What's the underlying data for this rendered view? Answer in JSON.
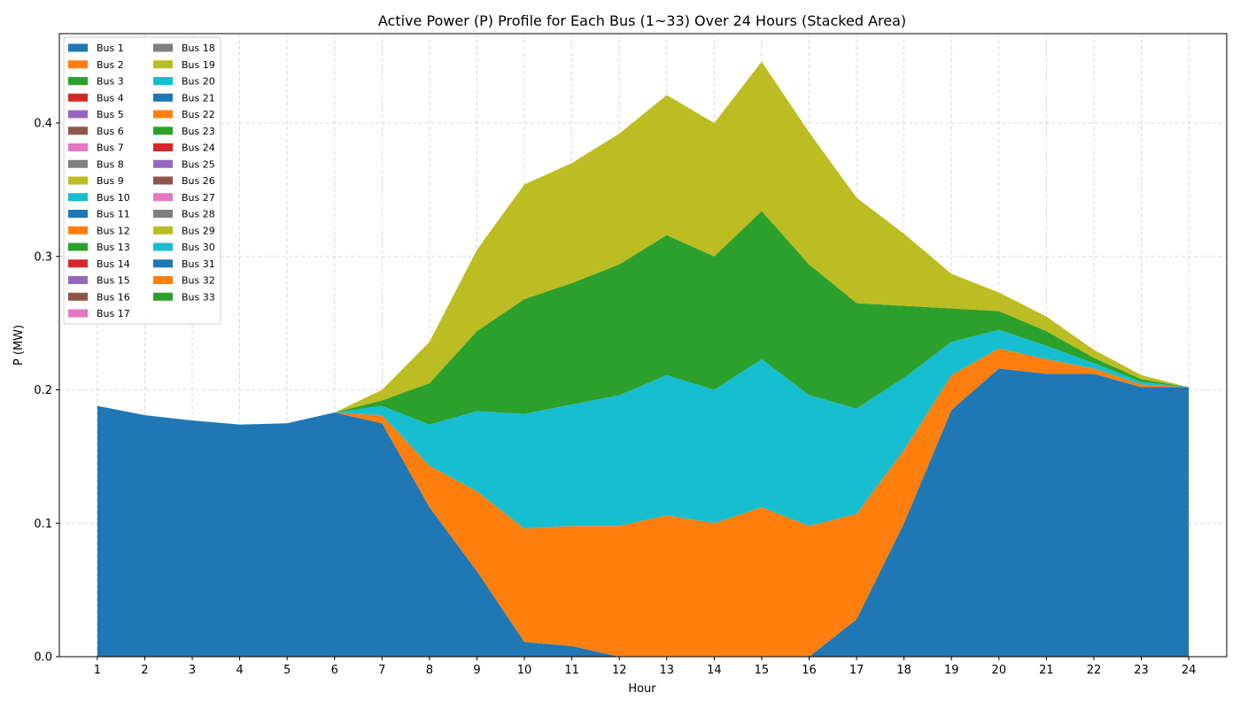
{
  "chart_data": {
    "type": "area",
    "stacked": true,
    "title": "Active Power (P) Profile for Each Bus (1~33) Over 24 Hours (Stacked Area)",
    "xlabel": "Hour",
    "ylabel": "P (MW)",
    "x": [
      1,
      2,
      3,
      4,
      5,
      6,
      7,
      8,
      9,
      10,
      11,
      12,
      13,
      14,
      15,
      16,
      17,
      18,
      19,
      20,
      21,
      22,
      23,
      24
    ],
    "xlim": [
      0.2,
      24.8
    ],
    "ylim": [
      0.0,
      0.467
    ],
    "yticks": [
      0.0,
      0.1,
      0.2,
      0.3,
      0.4
    ],
    "ytick_labels": [
      "0.0",
      "0.1",
      "0.2",
      "0.3",
      "0.4"
    ],
    "grid": true,
    "legend_position": "upper-left",
    "legend_columns": 2,
    "series": [
      {
        "name": "Bus 1",
        "color": "#1f77b4",
        "values": [
          0.188,
          0.181,
          0.177,
          0.174,
          0.175,
          0.183,
          0.175,
          0.112,
          0.064,
          0.011,
          0.008,
          0,
          0,
          0,
          0,
          0,
          0.028,
          0.1,
          0.185,
          0.216,
          0.212,
          0.212,
          0.202,
          0.202
        ]
      },
      {
        "name": "Bus 2",
        "color": "#ff7f0e",
        "values": [
          0,
          0,
          0,
          0,
          0,
          0,
          0.006,
          0.031,
          0.06,
          0.085,
          0.09,
          0.098,
          0.106,
          0.1,
          0.112,
          0.098,
          0.079,
          0.055,
          0.026,
          0.015,
          0.011,
          0.004,
          0.002,
          0
        ]
      },
      {
        "name": "Bus 3",
        "color": "#2ca02c",
        "values": [
          0,
          0,
          0,
          0,
          0,
          0,
          0,
          0,
          0,
          0,
          0,
          0,
          0,
          0,
          0,
          0,
          0,
          0,
          0,
          0,
          0,
          0,
          0,
          0
        ]
      },
      {
        "name": "Bus 4",
        "color": "#d62728",
        "values": [
          0,
          0,
          0,
          0,
          0,
          0,
          0,
          0,
          0,
          0,
          0,
          0,
          0,
          0,
          0,
          0,
          0,
          0,
          0,
          0,
          0,
          0,
          0,
          0
        ]
      },
      {
        "name": "Bus 5",
        "color": "#9467bd",
        "values": [
          0,
          0,
          0,
          0,
          0,
          0,
          0,
          0,
          0,
          0,
          0,
          0,
          0,
          0,
          0,
          0,
          0,
          0,
          0,
          0,
          0,
          0,
          0,
          0
        ]
      },
      {
        "name": "Bus 6",
        "color": "#8c564b",
        "values": [
          0,
          0,
          0,
          0,
          0,
          0,
          0,
          0,
          0,
          0,
          0,
          0,
          0,
          0,
          0,
          0,
          0,
          0,
          0,
          0,
          0,
          0,
          0,
          0
        ]
      },
      {
        "name": "Bus 7",
        "color": "#e377c2",
        "values": [
          0,
          0,
          0,
          0,
          0,
          0,
          0,
          0,
          0,
          0,
          0,
          0,
          0,
          0,
          0,
          0,
          0,
          0,
          0,
          0,
          0,
          0,
          0,
          0
        ]
      },
      {
        "name": "Bus 8",
        "color": "#7f7f7f",
        "values": [
          0,
          0,
          0,
          0,
          0,
          0,
          0,
          0,
          0,
          0,
          0,
          0,
          0,
          0,
          0,
          0,
          0,
          0,
          0,
          0,
          0,
          0,
          0,
          0
        ]
      },
      {
        "name": "Bus 9",
        "color": "#bcbd22",
        "values": [
          0,
          0,
          0,
          0,
          0,
          0,
          0,
          0,
          0,
          0,
          0,
          0,
          0,
          0,
          0,
          0,
          0,
          0,
          0,
          0,
          0,
          0,
          0,
          0
        ]
      },
      {
        "name": "Bus 10",
        "color": "#17becf",
        "values": [
          0,
          0,
          0,
          0,
          0,
          0,
          0,
          0,
          0,
          0,
          0,
          0,
          0,
          0,
          0,
          0,
          0,
          0,
          0,
          0,
          0,
          0,
          0,
          0
        ]
      },
      {
        "name": "Bus 11",
        "color": "#1f77b4",
        "values": [
          0,
          0,
          0,
          0,
          0,
          0,
          0,
          0,
          0,
          0,
          0,
          0,
          0,
          0,
          0,
          0,
          0,
          0,
          0,
          0,
          0,
          0,
          0,
          0
        ]
      },
      {
        "name": "Bus 12",
        "color": "#ff7f0e",
        "values": [
          0,
          0,
          0,
          0,
          0,
          0,
          0,
          0,
          0,
          0,
          0,
          0,
          0,
          0,
          0,
          0,
          0,
          0,
          0,
          0,
          0,
          0,
          0,
          0
        ]
      },
      {
        "name": "Bus 13",
        "color": "#2ca02c",
        "values": [
          0,
          0,
          0,
          0,
          0,
          0,
          0,
          0,
          0,
          0,
          0,
          0,
          0,
          0,
          0,
          0,
          0,
          0,
          0,
          0,
          0,
          0,
          0,
          0
        ]
      },
      {
        "name": "Bus 14",
        "color": "#d62728",
        "values": [
          0,
          0,
          0,
          0,
          0,
          0,
          0,
          0,
          0,
          0,
          0,
          0,
          0,
          0,
          0,
          0,
          0,
          0,
          0,
          0,
          0,
          0,
          0,
          0
        ]
      },
      {
        "name": "Bus 15",
        "color": "#9467bd",
        "values": [
          0,
          0,
          0,
          0,
          0,
          0,
          0,
          0,
          0,
          0,
          0,
          0,
          0,
          0,
          0,
          0,
          0,
          0,
          0,
          0,
          0,
          0,
          0,
          0
        ]
      },
      {
        "name": "Bus 16",
        "color": "#8c564b",
        "values": [
          0,
          0,
          0,
          0,
          0,
          0,
          0,
          0,
          0,
          0,
          0,
          0,
          0,
          0,
          0,
          0,
          0,
          0,
          0,
          0,
          0,
          0,
          0,
          0
        ]
      },
      {
        "name": "Bus 17",
        "color": "#e377c2",
        "values": [
          0,
          0,
          0,
          0,
          0,
          0,
          0,
          0,
          0,
          0,
          0,
          0,
          0,
          0,
          0,
          0,
          0,
          0,
          0,
          0,
          0,
          0,
          0,
          0
        ]
      },
      {
        "name": "Bus 18",
        "color": "#7f7f7f",
        "values": [
          0,
          0,
          0,
          0,
          0,
          0,
          0,
          0,
          0,
          0,
          0,
          0,
          0,
          0,
          0,
          0,
          0,
          0,
          0,
          0,
          0,
          0,
          0,
          0
        ]
      },
      {
        "name": "Bus 19",
        "color": "#bcbd22",
        "values": [
          0,
          0,
          0,
          0,
          0,
          0,
          0,
          0,
          0,
          0,
          0,
          0,
          0,
          0,
          0,
          0,
          0,
          0,
          0,
          0,
          0,
          0,
          0,
          0
        ]
      },
      {
        "name": "Bus 20",
        "color": "#17becf",
        "values": [
          0,
          0,
          0,
          0,
          0,
          0,
          0.007,
          0.031,
          0.06,
          0.086,
          0.091,
          0.098,
          0.105,
          0.1,
          0.111,
          0.098,
          0.079,
          0.054,
          0.025,
          0.014,
          0.01,
          0.004,
          0.002,
          0
        ]
      },
      {
        "name": "Bus 21",
        "color": "#1f77b4",
        "values": [
          0,
          0,
          0,
          0,
          0,
          0,
          0,
          0,
          0,
          0,
          0,
          0,
          0,
          0,
          0,
          0,
          0,
          0,
          0,
          0,
          0,
          0,
          0,
          0
        ]
      },
      {
        "name": "Bus 22",
        "color": "#ff7f0e",
        "values": [
          0,
          0,
          0,
          0,
          0,
          0,
          0,
          0,
          0,
          0,
          0,
          0,
          0,
          0,
          0,
          0,
          0,
          0,
          0,
          0,
          0,
          0,
          0,
          0
        ]
      },
      {
        "name": "Bus 23",
        "color": "#2ca02c",
        "values": [
          0,
          0,
          0,
          0,
          0,
          0,
          0.004,
          0.031,
          0.06,
          0.086,
          0.091,
          0.098,
          0.105,
          0.1,
          0.111,
          0.098,
          0.079,
          0.054,
          0.025,
          0.014,
          0.011,
          0.004,
          0.002,
          0
        ]
      },
      {
        "name": "Bus 24",
        "color": "#d62728",
        "values": [
          0,
          0,
          0,
          0,
          0,
          0,
          0,
          0,
          0,
          0,
          0,
          0,
          0,
          0,
          0,
          0,
          0,
          0,
          0,
          0,
          0,
          0,
          0,
          0
        ]
      },
      {
        "name": "Bus 25",
        "color": "#9467bd",
        "values": [
          0,
          0,
          0,
          0,
          0,
          0,
          0,
          0,
          0,
          0,
          0,
          0,
          0,
          0,
          0,
          0,
          0,
          0,
          0,
          0,
          0,
          0,
          0,
          0
        ]
      },
      {
        "name": "Bus 26",
        "color": "#8c564b",
        "values": [
          0,
          0,
          0,
          0,
          0,
          0,
          0,
          0,
          0,
          0,
          0,
          0,
          0,
          0,
          0,
          0,
          0,
          0,
          0,
          0,
          0,
          0,
          0,
          0
        ]
      },
      {
        "name": "Bus 27",
        "color": "#e377c2",
        "values": [
          0,
          0,
          0,
          0,
          0,
          0,
          0,
          0,
          0,
          0,
          0,
          0,
          0,
          0,
          0,
          0,
          0,
          0,
          0,
          0,
          0,
          0,
          0,
          0
        ]
      },
      {
        "name": "Bus 28",
        "color": "#7f7f7f",
        "values": [
          0,
          0,
          0,
          0,
          0,
          0,
          0,
          0,
          0,
          0,
          0,
          0,
          0,
          0,
          0,
          0,
          0,
          0,
          0,
          0,
          0,
          0,
          0,
          0
        ]
      },
      {
        "name": "Bus 29",
        "color": "#bcbd22",
        "values": [
          0,
          0,
          0,
          0,
          0,
          0,
          0.008,
          0.031,
          0.061,
          0.086,
          0.09,
          0.098,
          0.105,
          0.1,
          0.112,
          0.099,
          0.079,
          0.054,
          0.026,
          0.014,
          0.011,
          0.006,
          0.003,
          0
        ]
      },
      {
        "name": "Bus 30",
        "color": "#17becf",
        "values": [
          0,
          0,
          0,
          0,
          0,
          0,
          0,
          0,
          0,
          0,
          0,
          0,
          0,
          0,
          0,
          0,
          0,
          0,
          0,
          0,
          0,
          0,
          0,
          0
        ]
      },
      {
        "name": "Bus 31",
        "color": "#1f77b4",
        "values": [
          0,
          0,
          0,
          0,
          0,
          0,
          0,
          0,
          0,
          0,
          0,
          0,
          0,
          0,
          0,
          0,
          0,
          0,
          0,
          0,
          0,
          0,
          0,
          0
        ]
      },
      {
        "name": "Bus 32",
        "color": "#ff7f0e",
        "values": [
          0,
          0,
          0,
          0,
          0,
          0,
          0,
          0,
          0,
          0,
          0,
          0,
          0,
          0,
          0,
          0,
          0,
          0,
          0,
          0,
          0,
          0,
          0,
          0
        ]
      },
      {
        "name": "Bus 33",
        "color": "#2ca02c",
        "values": [
          0,
          0,
          0,
          0,
          0,
          0,
          0,
          0,
          0,
          0,
          0,
          0,
          0,
          0,
          0,
          0,
          0,
          0,
          0,
          0,
          0,
          0,
          0,
          0
        ]
      }
    ]
  }
}
